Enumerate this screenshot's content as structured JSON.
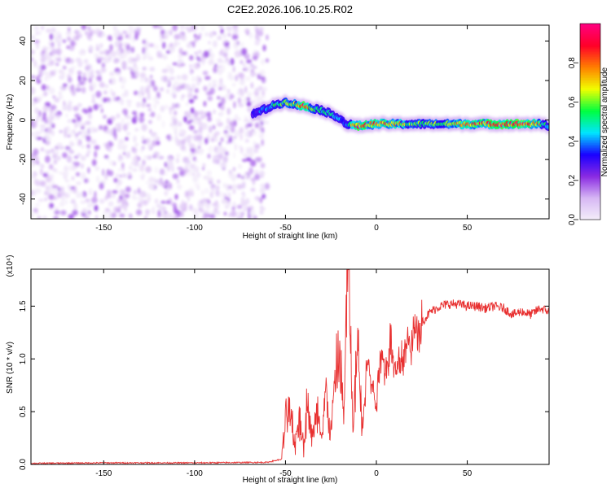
{
  "chart_data": [
    {
      "type": "heatmap",
      "title": "C2E2.2026.106.10.25.R02",
      "xlabel": "Height of straight line (km)",
      "ylabel": "Frequency (Hz)",
      "xlim": [
        -190,
        95
      ],
      "ylim": [
        -50,
        48
      ],
      "xticks": [
        -150,
        -100,
        -50,
        0,
        50
      ],
      "yticks": [
        -40,
        -20,
        0,
        20,
        40
      ],
      "colorbar": {
        "label": "Normalized spectral amplitude",
        "range": [
          0.0,
          1.0
        ],
        "ticks": [
          0.0,
          0.2,
          0.4,
          0.6,
          0.8
        ],
        "colors": [
          "#f4eefa",
          "#d7b8f4",
          "#8a2be2",
          "#1a00ff",
          "#00e5ff",
          "#00ff40",
          "#f0ff00",
          "#ff8000",
          "#ff0028",
          "#ff0080"
        ]
      },
      "noise_region": {
        "x_range": [
          -190,
          -60
        ],
        "y_range": [
          -50,
          48
        ],
        "amplitude": [
          0.0,
          0.2
        ]
      },
      "signal_ridge": {
        "x": [
          -68,
          -60,
          -55,
          -50,
          -45,
          -40,
          -35,
          -30,
          -25,
          -20,
          -17,
          -10,
          0,
          10,
          20,
          30,
          40,
          50,
          60,
          70,
          80,
          90,
          95
        ],
        "frequency": [
          3,
          6,
          8,
          9,
          8,
          7,
          6,
          5,
          3,
          1,
          -2,
          -3,
          -2,
          -2,
          -2,
          -2,
          -2,
          -2,
          -2,
          -2,
          -2,
          -2,
          -3
        ],
        "peak_amplitude": [
          0.3,
          0.45,
          0.55,
          0.6,
          0.65,
          0.95,
          0.6,
          0.55,
          0.5,
          0.45,
          0.4,
          0.9,
          0.8,
          0.8,
          0.6,
          0.6,
          0.7,
          0.8,
          0.85,
          0.9,
          0.95,
          0.7,
          0.4
        ]
      }
    },
    {
      "type": "line",
      "xlabel": "Height of straight line (km)",
      "ylabel": "SNR (10 * v/v)",
      "y_scale_label": "(x10⁴)",
      "xlim": [
        -190,
        95
      ],
      "ylim": [
        0,
        1.85
      ],
      "xticks": [
        -150,
        -100,
        -50,
        0,
        50
      ],
      "yticks": [
        0.0,
        0.5,
        1.0,
        1.5
      ],
      "series": [
        {
          "color": "#e83030",
          "x": [
            -190,
            -150,
            -100,
            -60,
            -52,
            -50,
            -48,
            -45,
            -42,
            -40,
            -38,
            -35,
            -32,
            -30,
            -28,
            -25,
            -22,
            -20,
            -18,
            -16,
            -15,
            -13,
            -10,
            -8,
            -5,
            -2,
            0,
            3,
            5,
            8,
            10,
            15,
            20,
            25,
            30,
            35,
            40,
            45,
            50,
            55,
            60,
            65,
            70,
            75,
            80,
            85,
            90,
            95
          ],
          "y": [
            0.01,
            0.015,
            0.015,
            0.02,
            0.05,
            0.4,
            0.55,
            0.2,
            0.45,
            0.15,
            0.6,
            0.25,
            0.5,
            0.2,
            0.7,
            0.3,
            0.9,
            1.05,
            0.4,
            1.75,
            1.8,
            0.3,
            1.2,
            0.35,
            1.0,
            0.7,
            0.6,
            1.15,
            0.85,
            1.2,
            0.9,
            1.05,
            1.2,
            1.35,
            1.45,
            1.5,
            1.52,
            1.52,
            1.5,
            1.5,
            1.48,
            1.5,
            1.48,
            1.42,
            1.45,
            1.42,
            1.48,
            1.45
          ]
        }
      ]
    }
  ]
}
